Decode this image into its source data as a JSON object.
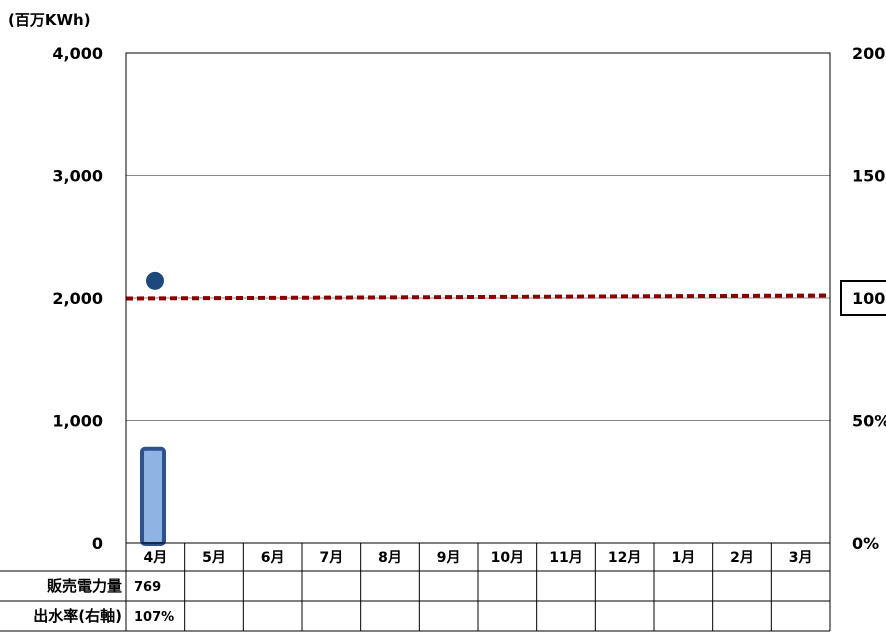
{
  "chart_data": {
    "type": "bar",
    "unit_label": "(百万KWh)",
    "categories": [
      "4月",
      "5月",
      "6月",
      "7月",
      "8月",
      "9月",
      "10月",
      "11月",
      "12月",
      "1月",
      "2月",
      "3月"
    ],
    "ylim": [
      0,
      4000
    ],
    "y_ticks": [
      "4,000",
      "3,000",
      "2,000",
      "1,000",
      "0"
    ],
    "y2lim": [
      0,
      2.0
    ],
    "y2_ticks": [
      "200",
      "150",
      "100",
      "50%",
      "0%"
    ],
    "grid": true,
    "series": [
      {
        "name": "販売電力量",
        "type": "bar",
        "axis": "left",
        "values": [
          769,
          null,
          null,
          null,
          null,
          null,
          null,
          null,
          null,
          null,
          null,
          null
        ],
        "display": [
          "769",
          "",
          "",
          "",
          "",
          "",
          "",
          "",
          "",
          "",
          "",
          ""
        ]
      },
      {
        "name": "出水率(右軸)",
        "type": "scatter",
        "axis": "right",
        "values": [
          1.07,
          null,
          null,
          null,
          null,
          null,
          null,
          null,
          null,
          null,
          null,
          null
        ],
        "display": [
          "107%",
          "",
          "",
          "",
          "",
          "",
          "",
          "",
          "",
          "",
          "",
          ""
        ]
      }
    ],
    "reference_line": {
      "axis": "right",
      "value": 1.0
    },
    "colors": {
      "bar_fill": "#8db4e2",
      "bar_stroke": "#2f528f",
      "marker": "#1f497d",
      "reference_line": "#8b0000"
    }
  }
}
